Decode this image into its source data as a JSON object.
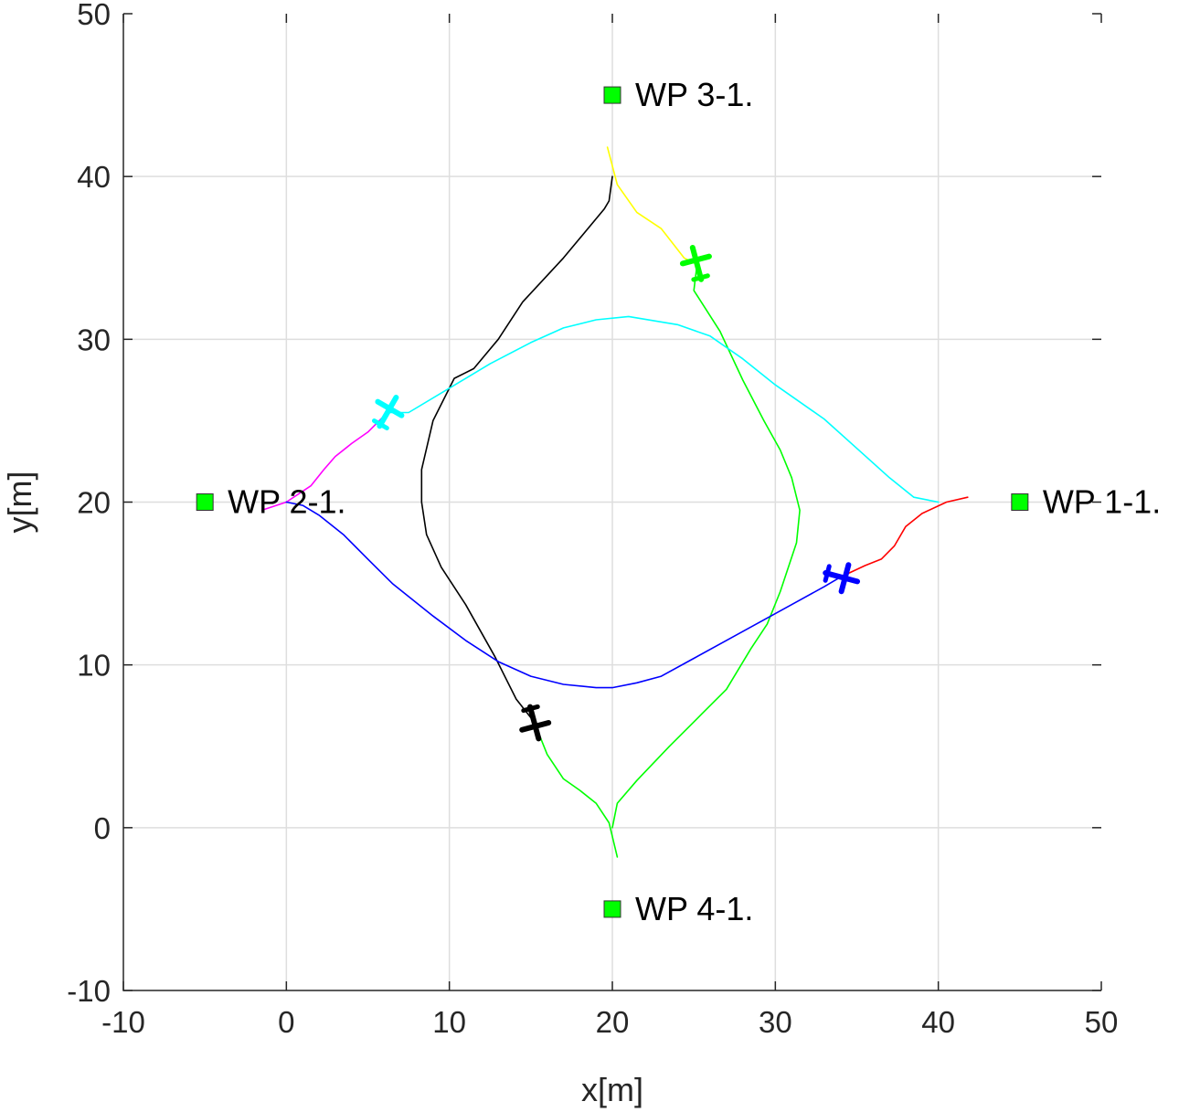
{
  "chart_data": {
    "type": "line",
    "xlabel": "x[m]",
    "ylabel": "y[m]",
    "xlim": [
      -10,
      50
    ],
    "ylim": [
      -10,
      50
    ],
    "xticks": [
      -10,
      0,
      10,
      20,
      30,
      40,
      50
    ],
    "yticks": [
      -10,
      0,
      10,
      20,
      30,
      40,
      50
    ],
    "grid": true,
    "waypoints": [
      {
        "label": "WP 3-1.",
        "x": 20,
        "y": 45,
        "color": "#00ff00"
      },
      {
        "label": "WP 2-1.",
        "x": -5,
        "y": 20,
        "color": "#00ff00"
      },
      {
        "label": "WP 1-1.",
        "x": 45,
        "y": 20,
        "color": "#00ff00"
      },
      {
        "label": "WP 4-1.",
        "x": 20,
        "y": -5,
        "color": "#00ff00"
      }
    ],
    "series": [
      {
        "color": "#000000",
        "points": [
          [
            20,
            40
          ],
          [
            19.8,
            38.5
          ],
          [
            19.5,
            38
          ],
          [
            17,
            35
          ],
          [
            14.5,
            32.3
          ],
          [
            13,
            30
          ],
          [
            11.5,
            28.2
          ],
          [
            10.3,
            27.6
          ],
          [
            9,
            25
          ],
          [
            8.3,
            22
          ],
          [
            8.3,
            20
          ],
          [
            8.6,
            18
          ],
          [
            9.5,
            16
          ],
          [
            11,
            13.7
          ],
          [
            12.8,
            10.5
          ],
          [
            14.1,
            7.9
          ],
          [
            15.2,
            6.5
          ]
        ]
      },
      {
        "color": "#ffff00",
        "points": [
          [
            19.7,
            41.8
          ],
          [
            20.3,
            39.5
          ],
          [
            21.5,
            37.8
          ],
          [
            23,
            36.8
          ],
          [
            24.4,
            35
          ],
          [
            25.2,
            34.6
          ]
        ]
      },
      {
        "color": "#00ff00",
        "points": [
          [
            25.2,
            34.6
          ],
          [
            25,
            33
          ],
          [
            26.6,
            30.5
          ],
          [
            28,
            27.5
          ],
          [
            29.3,
            25
          ],
          [
            30.3,
            23.2
          ],
          [
            31,
            21.5
          ],
          [
            31.5,
            19.5
          ],
          [
            31.3,
            17.5
          ],
          [
            30.3,
            14.5
          ],
          [
            29.5,
            12.5
          ],
          [
            28.5,
            11
          ],
          [
            27,
            8.5
          ],
          [
            25.5,
            7
          ],
          [
            23.5,
            5
          ],
          [
            21.5,
            2.9
          ],
          [
            20.3,
            1.5
          ],
          [
            20,
            0
          ]
        ]
      },
      {
        "color": "#00ff00",
        "points": [
          [
            15.2,
            6.5
          ],
          [
            16,
            4.5
          ],
          [
            17,
            3
          ],
          [
            18,
            2.3
          ],
          [
            19,
            1.5
          ],
          [
            19.8,
            0.3
          ],
          [
            20.3,
            -1.8
          ]
        ]
      },
      {
        "color": "#00ffff",
        "points": [
          [
            6.2,
            25.5
          ],
          [
            7.5,
            25.5
          ],
          [
            10,
            27
          ],
          [
            12.5,
            28.5
          ],
          [
            15,
            29.8
          ],
          [
            17,
            30.7
          ],
          [
            19,
            31.2
          ],
          [
            21,
            31.4
          ],
          [
            24,
            30.9
          ],
          [
            26,
            30.2
          ],
          [
            28,
            28.8
          ],
          [
            30,
            27.2
          ],
          [
            33,
            25.1
          ],
          [
            35,
            23.3
          ],
          [
            37,
            21.5
          ],
          [
            38.5,
            20.3
          ],
          [
            40,
            20
          ]
        ]
      },
      {
        "color": "#ff00ff",
        "points": [
          [
            -1.5,
            19.5
          ],
          [
            0,
            20
          ],
          [
            1.5,
            21
          ],
          [
            2.3,
            22
          ],
          [
            3,
            22.8
          ],
          [
            4,
            23.6
          ],
          [
            5,
            24.3
          ],
          [
            6.2,
            25.5
          ]
        ]
      },
      {
        "color": "#0000ff",
        "points": [
          [
            0,
            20
          ],
          [
            1,
            19.8
          ],
          [
            2,
            19.2
          ],
          [
            3.5,
            18
          ],
          [
            5,
            16.5
          ],
          [
            6.5,
            15
          ],
          [
            9,
            13
          ],
          [
            11,
            11.5
          ],
          [
            13,
            10.2
          ],
          [
            15,
            9.3
          ],
          [
            17,
            8.8
          ],
          [
            19,
            8.6
          ],
          [
            20,
            8.6
          ],
          [
            21.5,
            8.9
          ],
          [
            23,
            9.3
          ],
          [
            25,
            10.4
          ],
          [
            27,
            11.5
          ],
          [
            29,
            12.6
          ],
          [
            31,
            13.7
          ],
          [
            33,
            14.8
          ],
          [
            34,
            15.4
          ]
        ]
      },
      {
        "color": "#ff0000",
        "points": [
          [
            34,
            15.4
          ],
          [
            35.5,
            16.1
          ],
          [
            36.5,
            16.5
          ],
          [
            37.3,
            17.3
          ],
          [
            38,
            18.5
          ],
          [
            39,
            19.3
          ],
          [
            40.5,
            20
          ],
          [
            41.8,
            20.3
          ]
        ]
      }
    ],
    "aircraft": [
      {
        "x": 25.2,
        "y": 34.6,
        "heading": 0,
        "color": "#00ff00",
        "icon": "airplane-icon"
      },
      {
        "x": 6.2,
        "y": 25.5,
        "heading": 45,
        "color": "#00ffff",
        "icon": "airplane-icon"
      },
      {
        "x": 34,
        "y": 15.4,
        "heading": 120,
        "color": "#0000ff",
        "icon": "airplane-icon"
      },
      {
        "x": 15.2,
        "y": 6.5,
        "heading": 180,
        "color": "#000000",
        "icon": "airplane-icon"
      }
    ]
  }
}
